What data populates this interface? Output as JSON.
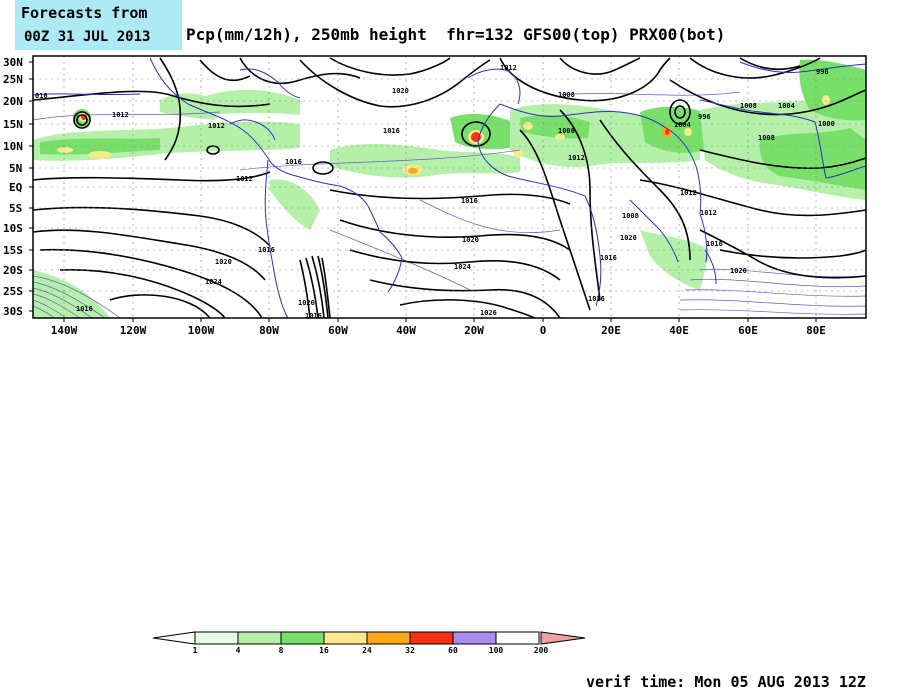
{
  "header": {
    "forecast_line1": "Forecasts from",
    "forecast_line2": "00Z 31 JUL 2013",
    "title": "Pcp(mm/12h), 250mb height  fhr=132 GFS00(top) PRX00(bot)"
  },
  "map": {
    "lat_labels": [
      "30N",
      "25N",
      "20N",
      "15N",
      "10N",
      "5N",
      "EQ",
      "5S",
      "10S",
      "15S",
      "20S",
      "25S",
      "30S"
    ],
    "lon_labels": [
      "140W",
      "120W",
      "100W",
      "80W",
      "60W",
      "40W",
      "20W",
      "0",
      "20E",
      "40E",
      "60E",
      "80E"
    ],
    "contour_labels": {
      "a": "1016",
      "b": "1012",
      "c": "1020",
      "d": "1016",
      "e": "1012",
      "f": "1008",
      "g": "1006",
      "h": "1012",
      "i": "996",
      "j": "1004",
      "k": "1000",
      "l": "1008",
      "m": "1012",
      "n": "1016",
      "o": "1012",
      "p": "1016",
      "q": "1020",
      "r": "1024",
      "s": "1016",
      "t": "1020",
      "u": "1024",
      "v": "1020",
      "w": "1016",
      "x": "1026",
      "y": "1016",
      "z": "1008",
      "aa": "1012",
      "ab": "1016",
      "ac": "1020",
      "ad": "1016",
      "ae": "1004",
      "af": "996",
      "ag": "1012",
      "ah": "1008",
      "ai": "1020",
      "aj": "1016",
      "ak": "016"
    }
  },
  "colorbar": {
    "labels": [
      "1",
      "4",
      "8",
      "16",
      "24",
      "32",
      "60",
      "100",
      "200"
    ],
    "colors": [
      "#e6fde6",
      "#b4f0a8",
      "#78e06a",
      "#faea8c",
      "#fba818",
      "#fa3010",
      "#aa8cf0",
      "#ffffff",
      "#f0a0a0"
    ]
  },
  "footer": {
    "verif": "verif time: Mon 05 AUG 2013 12Z"
  }
}
